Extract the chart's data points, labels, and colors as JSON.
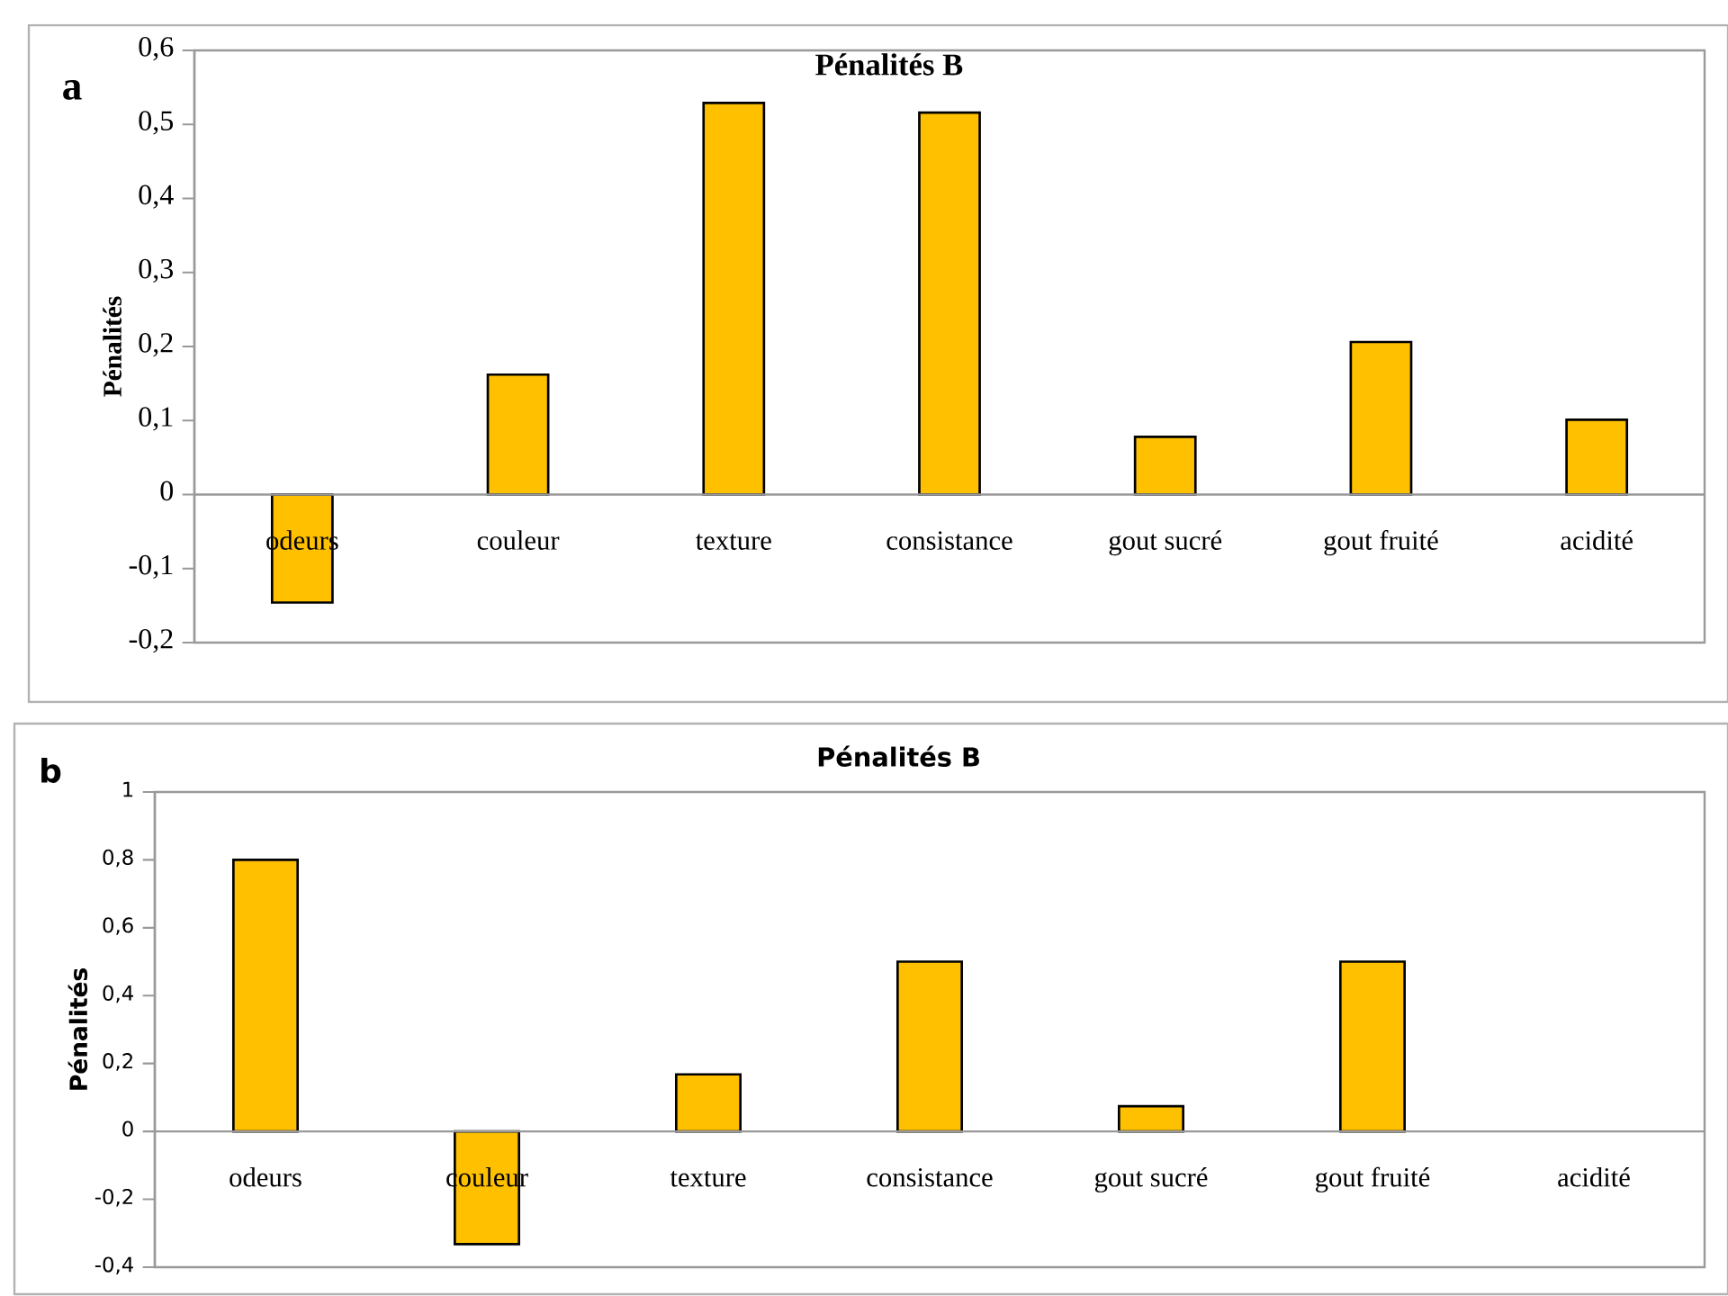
{
  "chart_data": [
    {
      "type": "bar",
      "title": "Pénalités B",
      "ylabel": "Pénalités",
      "annotations": [
        "a"
      ],
      "color": "#ffc000",
      "categories": [
        "odeurs",
        "couleur",
        "texture",
        "consistance",
        "gout sucré",
        "gout fruité",
        "acidité"
      ],
      "values": [
        -0.146,
        0.162,
        0.529,
        0.516,
        0.078,
        0.206,
        0.101
      ],
      "ylim": [
        -0.2,
        0.6
      ],
      "yticks": [
        {
          "value": -0.2,
          "label": "-0,2"
        },
        {
          "value": -0.1,
          "label": "-0,1"
        },
        0,
        {
          "value": 0.1,
          "label": "0,1"
        },
        {
          "value": 0.2,
          "label": "0,2"
        },
        {
          "value": 0.3,
          "label": "0,3"
        },
        {
          "value": 0.4,
          "label": "0,4"
        },
        {
          "value": 0.5,
          "label": "0,5"
        },
        {
          "value": 0.6,
          "label": "0,6"
        }
      ]
    },
    {
      "type": "bar",
      "title": "Pénalités B",
      "ylabel": "Pénalités",
      "annotations": [
        "b"
      ],
      "color": "#ffc000",
      "categories": [
        "odeurs",
        "couleur",
        "texture",
        "consistance",
        "gout sucré",
        "gout fruité",
        "acidité"
      ],
      "values": [
        0.8,
        -0.332,
        0.168,
        0.5,
        0.074,
        0.5,
        null
      ],
      "ylim": [
        -0.4,
        1
      ],
      "yticks": [
        {
          "value": -0.4,
          "label": "-0,4"
        },
        {
          "value": -0.2,
          "label": "-0,2"
        },
        0,
        {
          "value": 0.2,
          "label": "0,2"
        },
        {
          "value": 0.4,
          "label": "0,4"
        },
        {
          "value": 0.6,
          "label": "0,6"
        },
        {
          "value": 0.8,
          "label": "0,8"
        },
        1
      ]
    }
  ]
}
